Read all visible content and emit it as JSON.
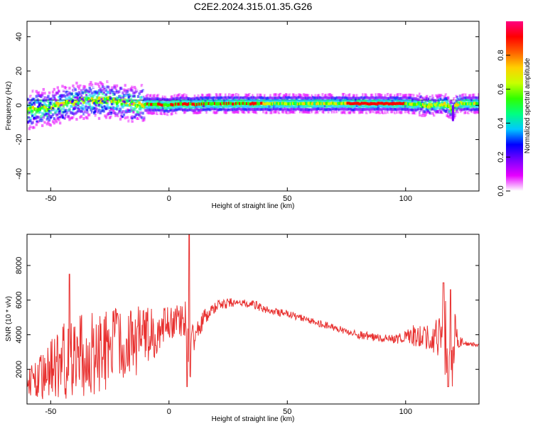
{
  "title": "C2E2.2024.315.01.35.G26",
  "colorbar": {
    "label": "Normalized spectral amplitude",
    "ticks": [
      "0.0",
      "0.2",
      "0.4",
      "0.6",
      "0.8"
    ],
    "range": [
      0,
      1
    ],
    "colormap": [
      "#ffffff",
      "#e600ff",
      "#7a00ff",
      "#0000ff",
      "#00c8ff",
      "#00ff80",
      "#30ff00",
      "#c8ff00",
      "#ffd000",
      "#ff6000",
      "#ff0000",
      "#ff0080"
    ]
  },
  "chart_data": [
    {
      "type": "heatmap",
      "title": "",
      "xlabel": "Height of straight line (km)",
      "ylabel": "Frequency (Hz)",
      "xlim": [
        -60,
        131
      ],
      "ylim": [
        -50,
        49
      ],
      "xticks": [
        -50,
        0,
        50,
        100
      ],
      "yticks": [
        -40,
        -20,
        0,
        20,
        40
      ],
      "grid": false,
      "ridge": {
        "x": [
          -60,
          -55,
          -50,
          -45,
          -40,
          -35,
          -30,
          -25,
          -20,
          -15,
          -10,
          -5,
          0,
          5,
          10,
          15,
          20,
          25,
          30,
          35,
          40,
          50,
          60,
          70,
          80,
          90,
          100,
          105,
          110,
          115,
          118,
          120,
          122,
          125,
          131
        ],
        "frequency": [
          -3,
          -2,
          -1,
          1,
          2,
          3,
          3,
          3,
          2,
          1,
          0.5,
          0.5,
          0,
          1,
          0.5,
          1,
          1,
          1,
          1,
          1,
          1,
          1,
          1,
          1,
          1,
          1,
          1,
          0.5,
          0,
          0.5,
          0,
          -3,
          1,
          1,
          1
        ]
      },
      "reference_line_frequency": 3
    },
    {
      "type": "line",
      "title": "",
      "xlabel": "Height of straight line (km)",
      "ylabel": "SNR (10 * v/v)",
      "xlim": [
        -60,
        131
      ],
      "ylim": [
        0,
        9800
      ],
      "xticks": [
        -50,
        0,
        50,
        100
      ],
      "yticks": [
        2000,
        4000,
        6000,
        8000
      ],
      "grid": false,
      "color": "#e8302f",
      "envelope": {
        "x": [
          -60,
          -55,
          -50,
          -45,
          -40,
          -35,
          -30,
          -25,
          -20,
          -15,
          -10,
          -5,
          0,
          3,
          6,
          8,
          9,
          10,
          12,
          15,
          20,
          25,
          30,
          35,
          40,
          45,
          50,
          55,
          60,
          65,
          70,
          75,
          80,
          85,
          90,
          95,
          100,
          105,
          110,
          113,
          115,
          117,
          118,
          119,
          120,
          121,
          122,
          125,
          131
        ],
        "mean": [
          1200,
          1500,
          2000,
          2400,
          2700,
          2800,
          2900,
          3100,
          3300,
          3600,
          3900,
          4300,
          4700,
          4800,
          4800,
          4000,
          3000,
          3500,
          4200,
          5000,
          5600,
          5800,
          5900,
          5800,
          5500,
          5300,
          5200,
          5000,
          4800,
          4600,
          4400,
          4200,
          4000,
          3900,
          3800,
          3800,
          3900,
          4000,
          4000,
          3900,
          3800,
          3500,
          3000,
          2200,
          3500,
          4000,
          3600,
          3500,
          3400
        ],
        "spread": [
          900,
          1300,
          1700,
          2200,
          2400,
          2500,
          2500,
          2400,
          2300,
          2100,
          1800,
          1500,
          1000,
          900,
          900,
          2500,
          1800,
          1200,
          700,
          500,
          350,
          300,
          280,
          260,
          240,
          230,
          220,
          210,
          200,
          200,
          200,
          200,
          220,
          240,
          260,
          300,
          450,
          700,
          900,
          1200,
          1500,
          2500,
          2500,
          2200,
          2500,
          1200,
          400,
          150,
          120
        ]
      },
      "peaks": [
        {
          "x": -42,
          "y": 7500
        },
        {
          "x": 8.5,
          "y": 9800
        },
        {
          "x": 7.6,
          "y": 1000
        },
        {
          "x": 116,
          "y": 7000
        },
        {
          "x": 119,
          "y": 6600
        },
        {
          "x": 118,
          "y": 1000
        }
      ]
    }
  ]
}
